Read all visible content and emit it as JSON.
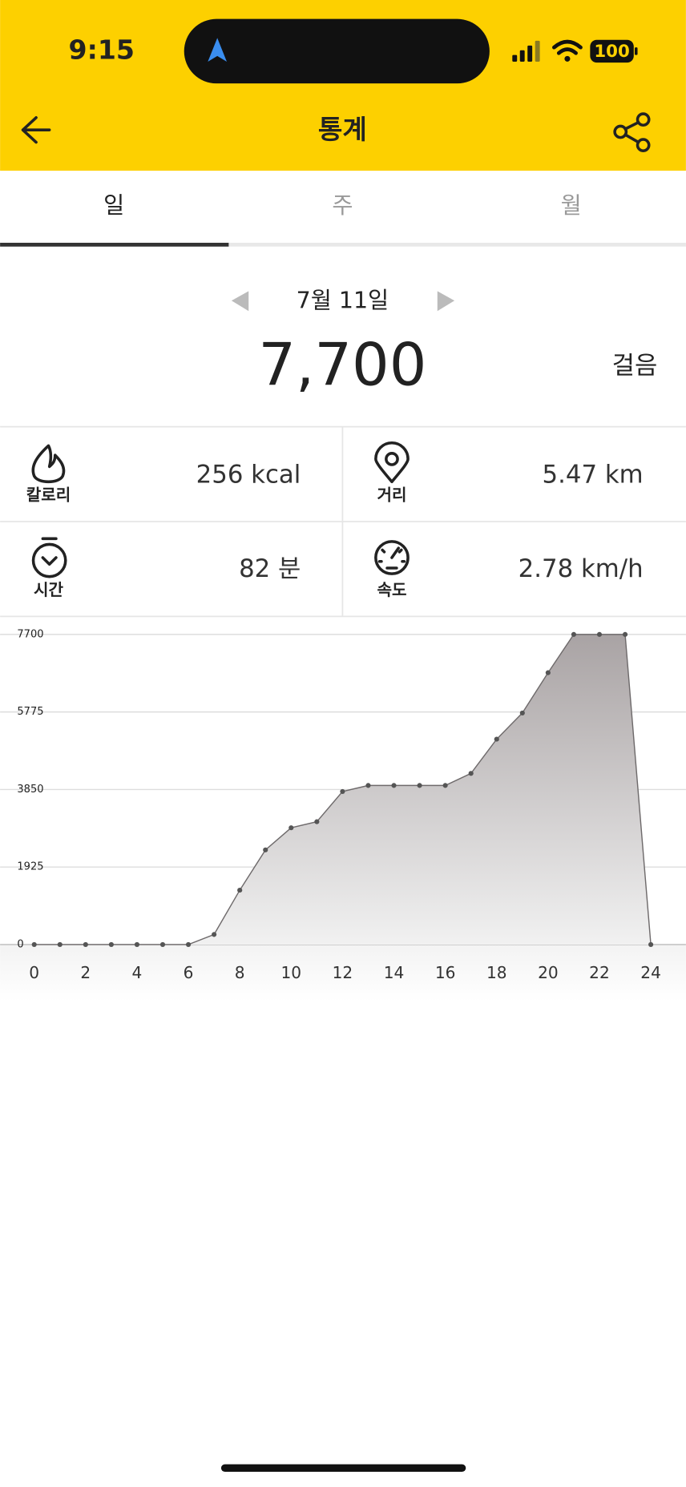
{
  "status_bar": {
    "time": "9:15",
    "battery": "100"
  },
  "header": {
    "title": "통계"
  },
  "tabs": [
    "일",
    "주",
    "월"
  ],
  "date": "7월 11일",
  "total": {
    "value": "7,700",
    "unit": "걸음"
  },
  "stats": [
    {
      "label": "칼로리",
      "value": "256 kcal"
    },
    {
      "label": "거리",
      "value": "5.47 km"
    },
    {
      "label": "시간",
      "value": "82 분"
    },
    {
      "label": "속도",
      "value": "2.78 km/h"
    }
  ],
  "chart_data": {
    "type": "area",
    "x": [
      0,
      1,
      2,
      3,
      4,
      5,
      6,
      7,
      8,
      9,
      10,
      11,
      12,
      13,
      14,
      15,
      16,
      17,
      18,
      19,
      20,
      21,
      22,
      23,
      24
    ],
    "values": [
      0,
      0,
      0,
      0,
      0,
      0,
      0,
      250,
      1350,
      2350,
      2900,
      3050,
      3800,
      3950,
      3950,
      3950,
      3950,
      4250,
      5100,
      5750,
      6750,
      7700,
      7700,
      7700,
      0
    ],
    "color": "#a9a3a4",
    "xlim": [
      0,
      24
    ],
    "xticks": [
      0,
      2,
      4,
      6,
      8,
      10,
      12,
      14,
      16,
      18,
      20,
      22,
      24
    ],
    "ylim": [
      0,
      7700
    ],
    "yticks": [
      0,
      1925,
      3850,
      5775,
      7700
    ],
    "grid": true
  }
}
